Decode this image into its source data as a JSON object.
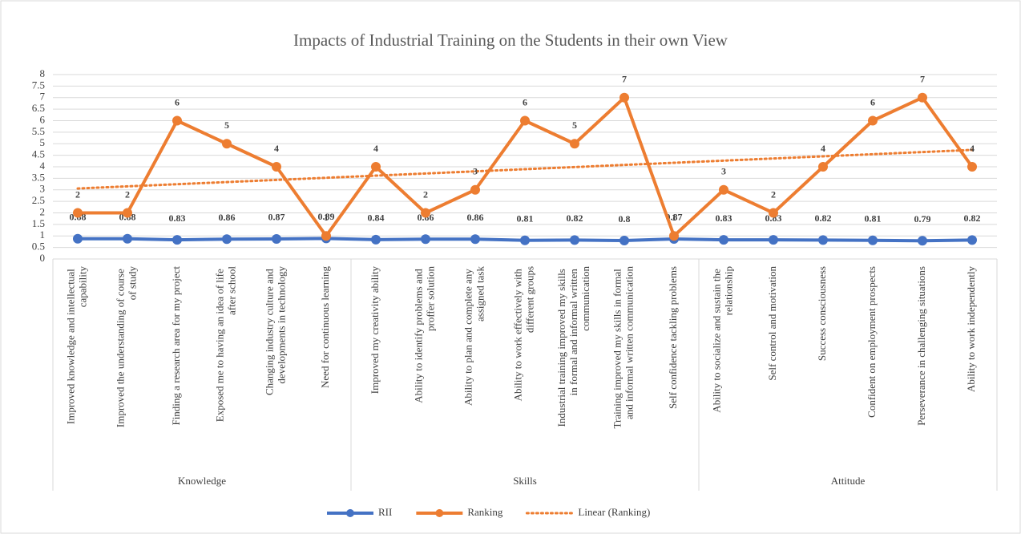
{
  "chart_data": {
    "type": "line",
    "title": "Impacts of Industrial Training on the Students in their own View",
    "category_groups": [
      {
        "name": "Knowledge",
        "categories": [
          "Improved knowledge and intellectual capability",
          "Improved the understanding of course of study",
          "Finding a research area for my project",
          "Exposed me to having an idea of life after school",
          "Changing industry culture and developments in technology",
          "Need for continuous learning"
        ]
      },
      {
        "name": "Skills",
        "categories": [
          "Improved my creativity ability",
          "Ability to identify problems and proffer solution",
          "Ability to plan and complete any assigned task",
          "Ability to work effectively with different groups",
          "Industrial training improved my skills in formal and informal written communication",
          "Training improved my skills in formal and informal written communication",
          "Self confidence tackling problems"
        ]
      },
      {
        "name": "Attitude",
        "categories": [
          "Ability to socialize and sustain the relationship",
          "Self control and motivation",
          "Success consciousness",
          "Confident on employment prospects",
          "Perseverance in challenging situations",
          "Ability to work independently"
        ]
      }
    ],
    "series": [
      {
        "name": "RII",
        "color": "#4472c4",
        "values": [
          0.88,
          0.88,
          0.83,
          0.86,
          0.87,
          0.89,
          0.84,
          0.86,
          0.86,
          0.81,
          0.82,
          0.8,
          0.87,
          0.83,
          0.83,
          0.82,
          0.81,
          0.79,
          0.82
        ]
      },
      {
        "name": "Ranking",
        "color": "#ed7d31",
        "values": [
          2,
          2,
          6,
          5,
          4,
          1,
          4,
          2,
          3,
          6,
          5,
          7,
          1,
          3,
          2,
          4,
          6,
          7,
          4
        ]
      }
    ],
    "trendline": {
      "name": "Linear (Ranking)",
      "series": 1,
      "color": "#ed7d31"
    },
    "ylim": [
      0,
      8
    ],
    "yticks": [
      0,
      0.5,
      1,
      1.5,
      2,
      2.5,
      3,
      3.5,
      4,
      4.5,
      5,
      5.5,
      6,
      6.5,
      7,
      7.5,
      8
    ],
    "grid": true,
    "legend": "bottom"
  }
}
